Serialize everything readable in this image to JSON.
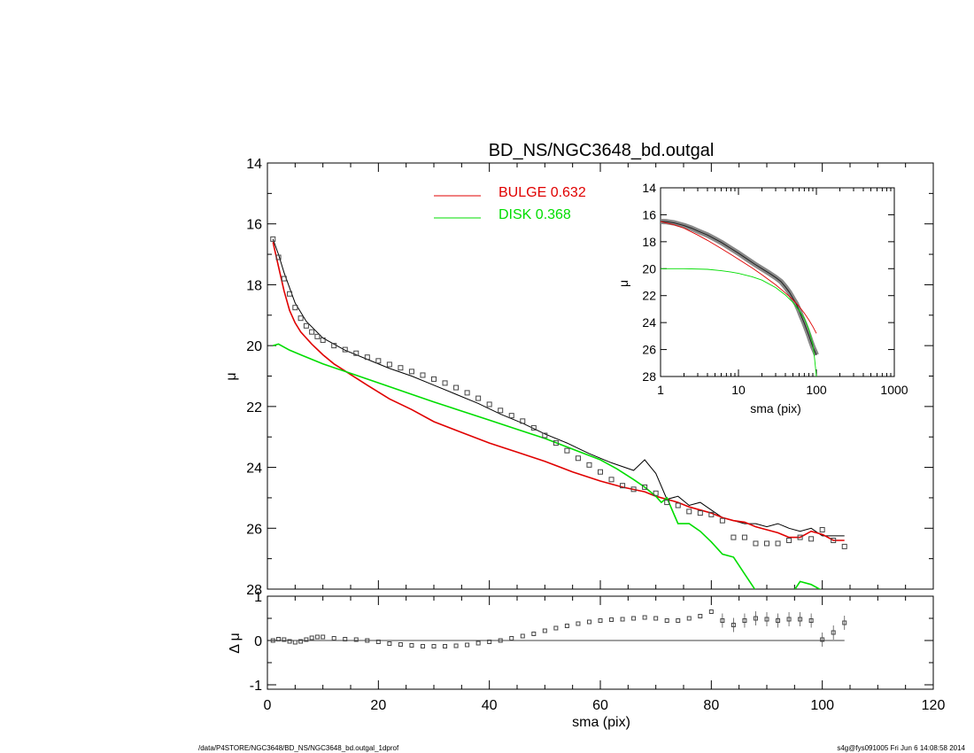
{
  "title": "BD_NS/NGC3648_bd.outgal",
  "footer": {
    "path": "/data/P4STORE/NGC3648/BD_NS/NGC3648_bd.outgal_1dprof",
    "stamp": "s4g@fys091005  Fri Jun  6 14:08:58 2014"
  },
  "colors": {
    "bulge": "#e00000",
    "disk": "#00dd00",
    "data": "#000000",
    "points": "#555555"
  },
  "chart_data": [
    {
      "id": "main",
      "type": "line",
      "title": "BD_NS/NGC3648_bd.outgal",
      "xlabel": "",
      "ylabel": "μ",
      "xlim": [
        0,
        120
      ],
      "ylim": [
        28,
        14
      ],
      "xticks": [
        0,
        20,
        40,
        60,
        80,
        100,
        120
      ],
      "yticks": [
        14,
        16,
        18,
        20,
        22,
        24,
        26,
        28
      ],
      "legend": [
        {
          "label": "BULGE  0.632",
          "color": "#e00000"
        },
        {
          "label": "DISK  0.368",
          "color": "#00dd00"
        }
      ],
      "legend_position": "top-center",
      "series": [
        {
          "name": "data",
          "style": "boxes",
          "x": [
            1,
            2,
            3,
            4,
            5,
            6,
            7,
            8,
            9,
            10,
            12,
            14,
            16,
            18,
            20,
            22,
            24,
            26,
            28,
            30,
            32,
            34,
            36,
            38,
            40,
            42,
            44,
            46,
            48,
            50,
            52,
            54,
            56,
            58,
            60,
            62,
            64,
            66,
            68,
            70,
            72,
            74,
            76,
            78,
            80,
            82,
            84,
            86,
            88,
            90,
            92,
            94,
            96,
            98,
            100,
            102,
            104
          ],
          "y": [
            16.5,
            17.1,
            17.8,
            18.3,
            18.75,
            19.1,
            19.35,
            19.55,
            19.7,
            19.82,
            20.0,
            20.13,
            20.25,
            20.38,
            20.5,
            20.62,
            20.73,
            20.85,
            20.97,
            21.1,
            21.23,
            21.38,
            21.55,
            21.73,
            21.93,
            22.13,
            22.3,
            22.48,
            22.7,
            22.95,
            23.2,
            23.45,
            23.7,
            23.92,
            24.15,
            24.4,
            24.6,
            24.72,
            24.65,
            24.85,
            25.15,
            25.25,
            25.45,
            25.5,
            25.55,
            25.75,
            26.3,
            26.3,
            26.5,
            26.5,
            26.5,
            26.4,
            26.3,
            26.35,
            26.05,
            26.4,
            26.6
          ]
        },
        {
          "name": "total",
          "x": [
            1,
            2,
            3,
            5,
            7,
            10,
            14,
            18,
            22,
            26,
            30,
            34,
            38,
            42,
            46,
            50,
            54,
            58,
            62,
            66,
            68,
            70,
            72,
            74,
            76,
            78,
            80,
            82,
            84,
            86,
            88,
            90,
            92,
            94,
            96,
            98,
            100,
            102,
            104
          ],
          "y": [
            16.5,
            17.0,
            17.6,
            18.6,
            19.2,
            19.75,
            20.15,
            20.45,
            20.75,
            21.0,
            21.3,
            21.6,
            21.9,
            22.25,
            22.55,
            22.9,
            23.2,
            23.55,
            23.85,
            24.1,
            23.75,
            24.2,
            25.05,
            24.95,
            25.25,
            25.15,
            25.4,
            25.65,
            25.75,
            25.85,
            25.85,
            25.95,
            25.85,
            26.0,
            26.1,
            26.0,
            26.25,
            26.25,
            26.25
          ]
        },
        {
          "name": "bulge",
          "color": "#e00000",
          "x": [
            1,
            2,
            3,
            4,
            5,
            6,
            8,
            10,
            12,
            15,
            18,
            22,
            26,
            30,
            35,
            40,
            45,
            50,
            55,
            60,
            64,
            68,
            70,
            72,
            74,
            76,
            78,
            80,
            82,
            84,
            86,
            88,
            90,
            92,
            94,
            96,
            98,
            100,
            102,
            104
          ],
          "y": [
            16.6,
            17.4,
            18.2,
            18.85,
            19.25,
            19.55,
            19.95,
            20.3,
            20.6,
            20.95,
            21.3,
            21.75,
            22.1,
            22.5,
            22.85,
            23.2,
            23.5,
            23.8,
            24.15,
            24.45,
            24.65,
            24.8,
            24.95,
            25.05,
            25.15,
            25.3,
            25.4,
            25.5,
            25.65,
            25.75,
            25.8,
            25.95,
            26.05,
            26.15,
            26.3,
            26.3,
            26.1,
            26.2,
            26.4,
            26.4
          ]
        },
        {
          "name": "disk",
          "color": "#00dd00",
          "x": [
            1,
            2,
            4,
            6,
            8,
            10,
            14,
            18,
            22,
            26,
            30,
            35,
            40,
            45,
            50,
            55,
            60,
            63,
            66,
            68,
            70,
            71,
            72,
            74,
            76,
            78,
            80,
            82,
            84,
            86,
            88,
            90,
            92,
            94,
            96,
            98,
            100,
            102,
            104
          ],
          "y": [
            20.0,
            19.95,
            20.15,
            20.3,
            20.45,
            20.6,
            20.85,
            21.1,
            21.35,
            21.6,
            21.85,
            22.15,
            22.45,
            22.75,
            23.05,
            23.4,
            23.75,
            24.05,
            24.4,
            24.65,
            24.95,
            25.15,
            25.0,
            25.85,
            25.85,
            26.1,
            26.45,
            26.85,
            26.95,
            27.5,
            28.05,
            28.3,
            28.3,
            28.3,
            27.75,
            27.85,
            28.05,
            28.3,
            28.3
          ]
        }
      ]
    },
    {
      "id": "inset",
      "type": "line",
      "xlabel": "sma (pix)",
      "ylabel": "μ",
      "xscale": "log",
      "xlim": [
        1,
        1000
      ],
      "ylim": [
        28,
        14
      ],
      "xticks": [
        1,
        10,
        100,
        1000
      ],
      "yticks": [
        14,
        16,
        18,
        20,
        22,
        24,
        26,
        28
      ],
      "series": [
        {
          "name": "data",
          "style": "boxes",
          "x": [
            1,
            1.2,
            1.5,
            2,
            2.5,
            3,
            4,
            5,
            6,
            8,
            10,
            13,
            16,
            20,
            25,
            30,
            35,
            40,
            45,
            50,
            55,
            60,
            65,
            70,
            75,
            80,
            85,
            90,
            95,
            100
          ],
          "y": [
            16.5,
            16.52,
            16.6,
            16.8,
            17.0,
            17.2,
            17.5,
            17.8,
            18.05,
            18.5,
            18.85,
            19.3,
            19.65,
            20.0,
            20.35,
            20.65,
            20.95,
            21.35,
            21.75,
            22.2,
            22.6,
            23.1,
            23.6,
            24.05,
            24.5,
            24.95,
            25.4,
            25.8,
            26.1,
            26.4
          ]
        },
        {
          "name": "bulge",
          "color": "#e00000",
          "x": [
            1,
            1.5,
            2,
            3,
            4,
            6,
            8,
            10,
            15,
            20,
            30,
            40,
            50,
            60,
            70,
            80,
            90,
            100
          ],
          "y": [
            16.5,
            16.75,
            17.0,
            17.5,
            17.9,
            18.5,
            18.95,
            19.3,
            19.95,
            20.45,
            21.2,
            21.8,
            22.3,
            22.8,
            23.3,
            23.8,
            24.3,
            24.8
          ]
        },
        {
          "name": "disk",
          "color": "#00dd00",
          "x": [
            1,
            2,
            4,
            6,
            8,
            10,
            15,
            20,
            30,
            40,
            50,
            60,
            70,
            80,
            90,
            95,
            100
          ],
          "y": [
            20.0,
            20.0,
            20.05,
            20.15,
            20.25,
            20.35,
            20.6,
            20.85,
            21.4,
            21.95,
            22.5,
            23.1,
            23.7,
            24.5,
            25.6,
            26.7,
            28.0
          ]
        }
      ]
    },
    {
      "id": "residual",
      "type": "scatter",
      "xlabel": "sma (pix)",
      "ylabel": "Δ μ",
      "xlim": [
        0,
        120
      ],
      "ylim": [
        -1.1,
        1
      ],
      "xticks": [
        0,
        20,
        40,
        60,
        80,
        100,
        120
      ],
      "yticks": [
        -1,
        0,
        1
      ],
      "series": [
        {
          "name": "residual",
          "x": [
            1,
            2,
            3,
            4,
            5,
            6,
            7,
            8,
            9,
            10,
            12,
            14,
            16,
            18,
            20,
            22,
            24,
            26,
            28,
            30,
            32,
            34,
            36,
            38,
            40,
            42,
            44,
            46,
            48,
            50,
            52,
            54,
            56,
            58,
            60,
            62,
            64,
            66,
            68,
            70,
            72,
            74,
            76,
            78,
            80,
            82,
            84,
            86,
            88,
            90,
            92,
            94,
            96,
            98,
            100,
            102,
            104
          ],
          "y": [
            0.0,
            0.03,
            0.02,
            -0.02,
            -0.04,
            -0.02,
            0.02,
            0.06,
            0.08,
            0.08,
            0.05,
            0.03,
            0.02,
            0.0,
            -0.03,
            -0.07,
            -0.09,
            -0.11,
            -0.13,
            -0.13,
            -0.13,
            -0.12,
            -0.1,
            -0.06,
            -0.03,
            0.0,
            0.05,
            0.1,
            0.15,
            0.22,
            0.28,
            0.33,
            0.38,
            0.42,
            0.45,
            0.47,
            0.48,
            0.5,
            0.52,
            0.5,
            0.45,
            0.45,
            0.5,
            0.55,
            0.65,
            0.45,
            0.35,
            0.45,
            0.5,
            0.48,
            0.45,
            0.48,
            0.48,
            0.45,
            0.02,
            0.18,
            0.4
          ]
        }
      ]
    }
  ]
}
